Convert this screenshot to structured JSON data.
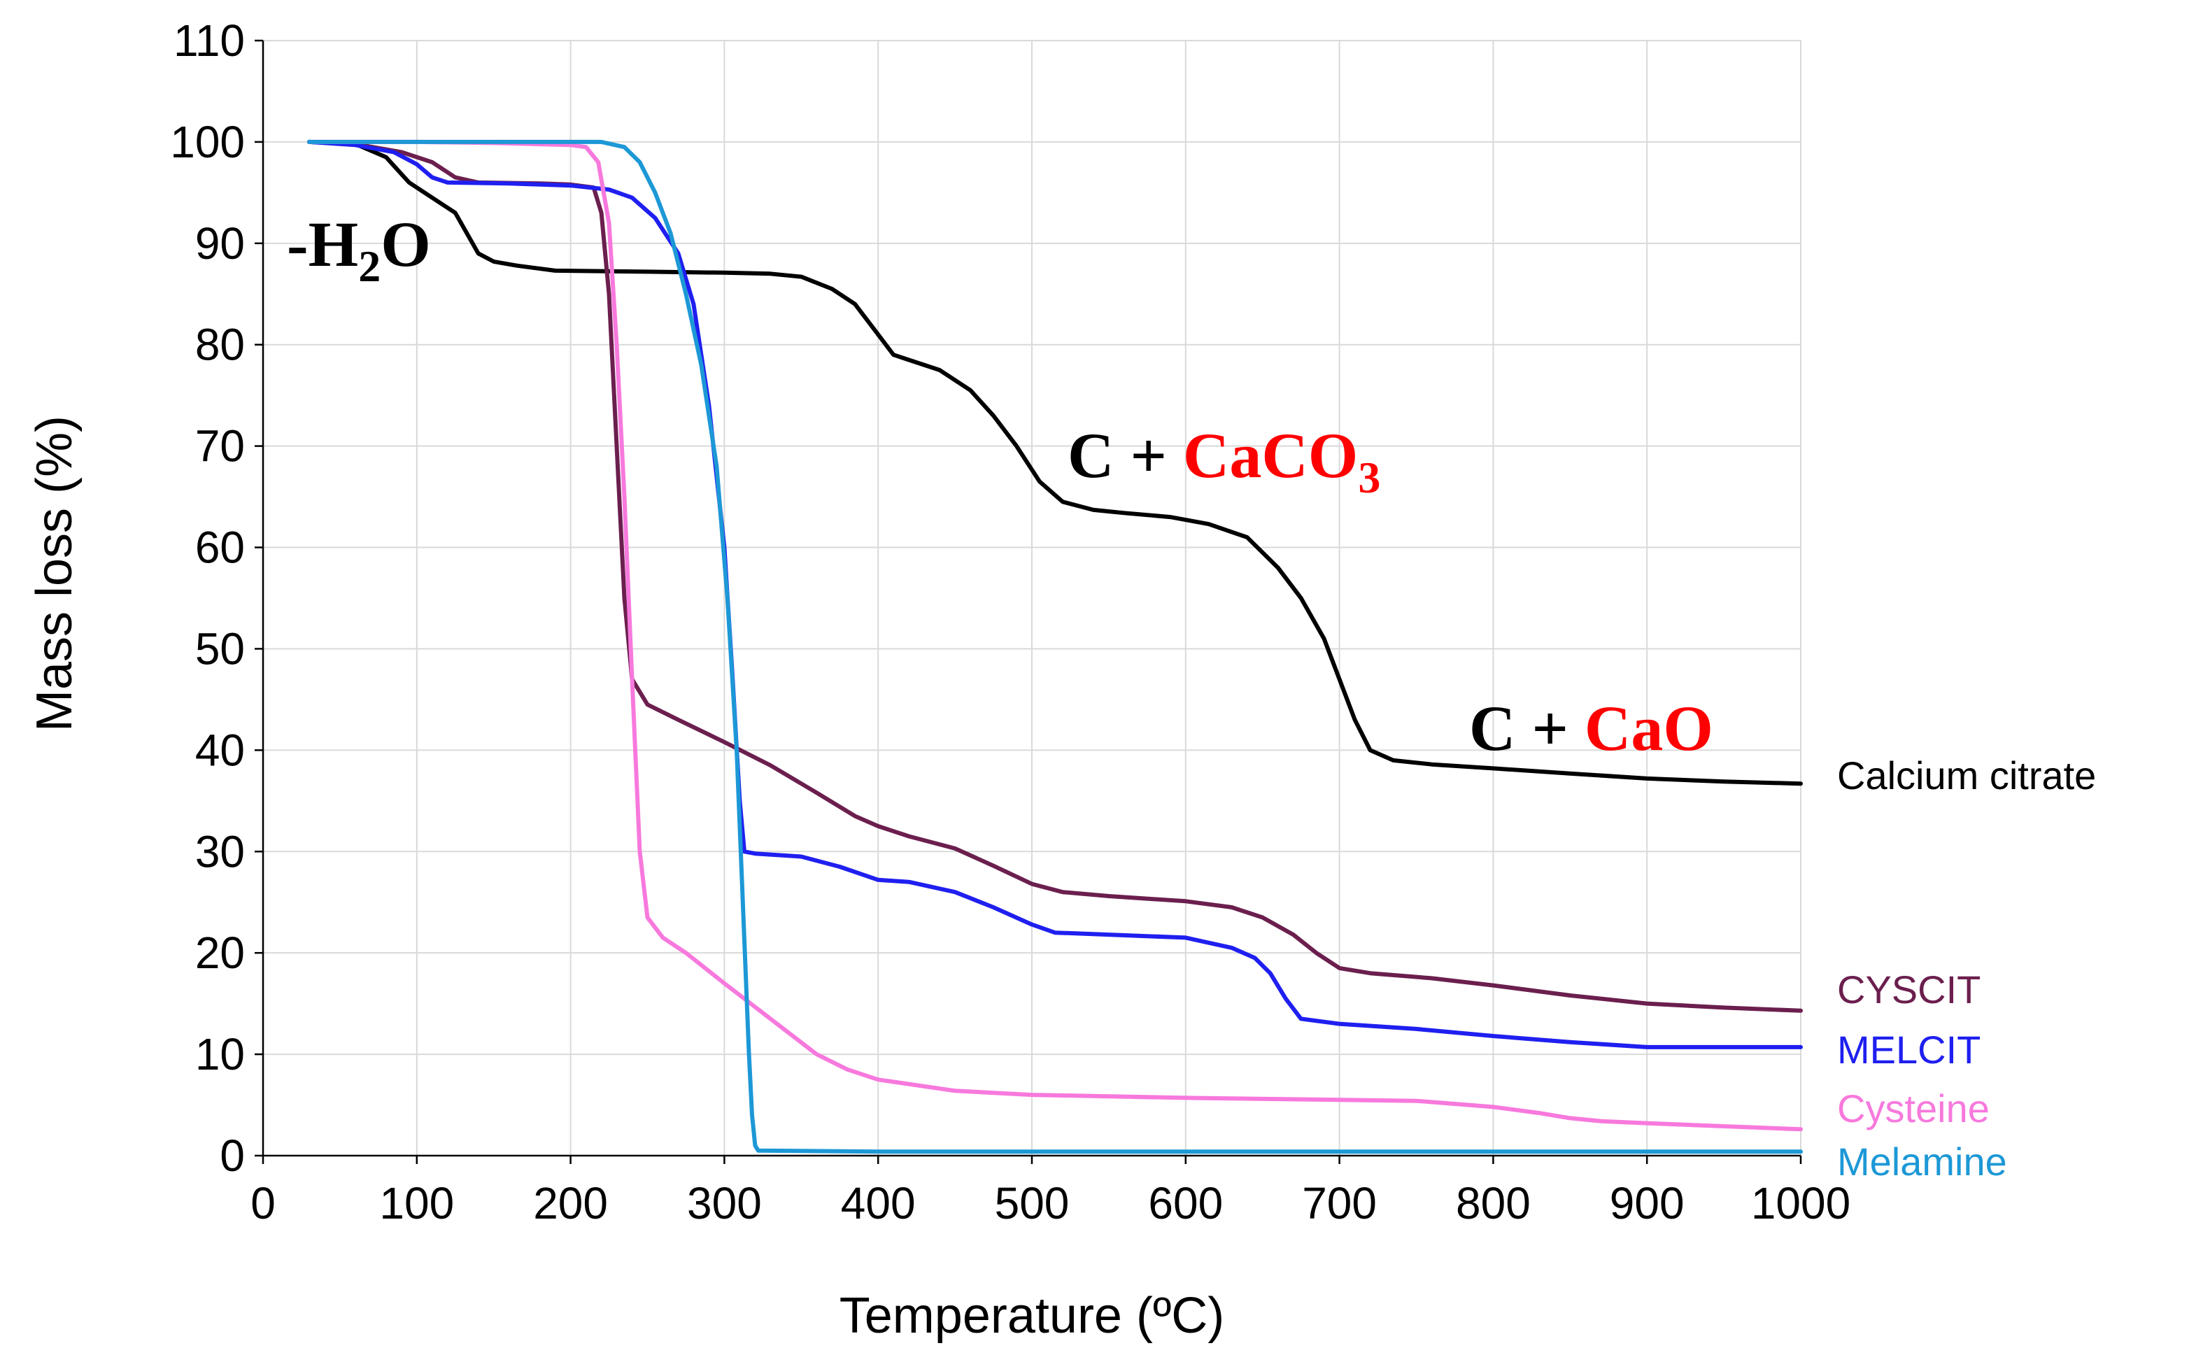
{
  "chart_data": {
    "type": "line",
    "title": "",
    "xlabel": "Temperature (ºC)",
    "ylabel": "Mass loss (%)",
    "xlim": [
      0,
      1000
    ],
    "ylim": [
      0,
      110
    ],
    "x_ticks": [
      "0",
      "100",
      "200",
      "300",
      "400",
      "500",
      "600",
      "700",
      "800",
      "900",
      "1000"
    ],
    "y_ticks": [
      "0",
      "10",
      "20",
      "30",
      "40",
      "50",
      "60",
      "70",
      "80",
      "90",
      "100",
      "110"
    ],
    "grid": true,
    "series": [
      {
        "name": "Calcium citrate",
        "color": "#000000",
        "label_y": 36.7,
        "points": [
          [
            30,
            100
          ],
          [
            60,
            99.8
          ],
          [
            80,
            98.5
          ],
          [
            95,
            96
          ],
          [
            110,
            94.5
          ],
          [
            125,
            93
          ],
          [
            140,
            89
          ],
          [
            150,
            88.2
          ],
          [
            165,
            87.8
          ],
          [
            190,
            87.3
          ],
          [
            250,
            87.2
          ],
          [
            300,
            87.1
          ],
          [
            330,
            87
          ],
          [
            350,
            86.7
          ],
          [
            370,
            85.5
          ],
          [
            385,
            84
          ],
          [
            400,
            81
          ],
          [
            410,
            79
          ],
          [
            420,
            78.5
          ],
          [
            440,
            77.5
          ],
          [
            460,
            75.5
          ],
          [
            475,
            73
          ],
          [
            490,
            70
          ],
          [
            505,
            66.5
          ],
          [
            520,
            64.5
          ],
          [
            540,
            63.7
          ],
          [
            560,
            63.4
          ],
          [
            590,
            63
          ],
          [
            615,
            62.3
          ],
          [
            640,
            61
          ],
          [
            660,
            58
          ],
          [
            675,
            55
          ],
          [
            690,
            51
          ],
          [
            700,
            47
          ],
          [
            710,
            43
          ],
          [
            720,
            40
          ],
          [
            735,
            39
          ],
          [
            760,
            38.6
          ],
          [
            800,
            38.2
          ],
          [
            850,
            37.7
          ],
          [
            900,
            37.2
          ],
          [
            950,
            36.9
          ],
          [
            1000,
            36.7
          ]
        ]
      },
      {
        "name": "CYSCIT",
        "color": "#6b1f4e",
        "label_y": 14.3,
        "points": [
          [
            30,
            100
          ],
          [
            60,
            99.8
          ],
          [
            90,
            99
          ],
          [
            110,
            98
          ],
          [
            125,
            96.5
          ],
          [
            140,
            96
          ],
          [
            180,
            95.9
          ],
          [
            200,
            95.8
          ],
          [
            215,
            95.5
          ],
          [
            220,
            93
          ],
          [
            225,
            85
          ],
          [
            230,
            70
          ],
          [
            235,
            55
          ],
          [
            240,
            47
          ],
          [
            250,
            44.5
          ],
          [
            270,
            43
          ],
          [
            300,
            40.8
          ],
          [
            330,
            38.5
          ],
          [
            360,
            35.8
          ],
          [
            385,
            33.5
          ],
          [
            400,
            32.5
          ],
          [
            420,
            31.5
          ],
          [
            450,
            30.3
          ],
          [
            475,
            28.6
          ],
          [
            500,
            26.8
          ],
          [
            520,
            26
          ],
          [
            550,
            25.6
          ],
          [
            600,
            25.1
          ],
          [
            630,
            24.5
          ],
          [
            650,
            23.5
          ],
          [
            670,
            21.8
          ],
          [
            685,
            20
          ],
          [
            700,
            18.5
          ],
          [
            720,
            18
          ],
          [
            760,
            17.5
          ],
          [
            800,
            16.8
          ],
          [
            850,
            15.8
          ],
          [
            900,
            15
          ],
          [
            950,
            14.6
          ],
          [
            1000,
            14.3
          ]
        ]
      },
      {
        "name": "MELCIT",
        "color": "#1f1ff0",
        "label_y": 10.7,
        "points": [
          [
            30,
            100
          ],
          [
            60,
            99.7
          ],
          [
            85,
            99
          ],
          [
            100,
            97.8
          ],
          [
            110,
            96.5
          ],
          [
            120,
            96
          ],
          [
            160,
            95.9
          ],
          [
            200,
            95.7
          ],
          [
            225,
            95.3
          ],
          [
            240,
            94.5
          ],
          [
            255,
            92.5
          ],
          [
            270,
            89
          ],
          [
            280,
            84
          ],
          [
            290,
            74
          ],
          [
            300,
            60
          ],
          [
            305,
            48
          ],
          [
            310,
            35
          ],
          [
            313,
            30
          ],
          [
            320,
            29.8
          ],
          [
            350,
            29.5
          ],
          [
            375,
            28.5
          ],
          [
            400,
            27.2
          ],
          [
            420,
            27
          ],
          [
            450,
            26
          ],
          [
            475,
            24.5
          ],
          [
            500,
            22.8
          ],
          [
            515,
            22
          ],
          [
            550,
            21.8
          ],
          [
            600,
            21.5
          ],
          [
            630,
            20.5
          ],
          [
            645,
            19.5
          ],
          [
            655,
            18
          ],
          [
            665,
            15.5
          ],
          [
            675,
            13.5
          ],
          [
            700,
            13
          ],
          [
            750,
            12.5
          ],
          [
            800,
            11.8
          ],
          [
            850,
            11.2
          ],
          [
            900,
            10.7
          ],
          [
            950,
            10.7
          ],
          [
            1000,
            10.7
          ]
        ]
      },
      {
        "name": "Cysteine",
        "color": "#f779dd",
        "label_y": 2.6,
        "points": [
          [
            30,
            100
          ],
          [
            100,
            100
          ],
          [
            150,
            99.9
          ],
          [
            200,
            99.7
          ],
          [
            210,
            99.5
          ],
          [
            218,
            98
          ],
          [
            225,
            92
          ],
          [
            230,
            80
          ],
          [
            235,
            65
          ],
          [
            240,
            47
          ],
          [
            245,
            30
          ],
          [
            250,
            23.5
          ],
          [
            260,
            21.5
          ],
          [
            275,
            20
          ],
          [
            300,
            17
          ],
          [
            330,
            13.5
          ],
          [
            360,
            10
          ],
          [
            380,
            8.5
          ],
          [
            400,
            7.5
          ],
          [
            450,
            6.4
          ],
          [
            500,
            6
          ],
          [
            600,
            5.7
          ],
          [
            700,
            5.5
          ],
          [
            750,
            5.4
          ],
          [
            800,
            4.8
          ],
          [
            830,
            4.2
          ],
          [
            850,
            3.7
          ],
          [
            870,
            3.4
          ],
          [
            900,
            3.2
          ],
          [
            950,
            2.9
          ],
          [
            1000,
            2.6
          ]
        ]
      },
      {
        "name": "Melamine",
        "color": "#1d98d6",
        "label_y": 0.4,
        "points": [
          [
            30,
            100
          ],
          [
            100,
            100
          ],
          [
            200,
            100
          ],
          [
            220,
            100
          ],
          [
            235,
            99.5
          ],
          [
            245,
            98
          ],
          [
            255,
            95
          ],
          [
            265,
            91
          ],
          [
            275,
            85
          ],
          [
            285,
            78
          ],
          [
            295,
            68
          ],
          [
            302,
            55
          ],
          [
            308,
            40
          ],
          [
            312,
            25
          ],
          [
            316,
            10
          ],
          [
            318,
            4
          ],
          [
            320,
            1
          ],
          [
            322,
            0.5
          ],
          [
            400,
            0.4
          ],
          [
            600,
            0.4
          ],
          [
            800,
            0.4
          ],
          [
            1000,
            0.4
          ]
        ]
      }
    ],
    "annotations": [
      {
        "id": "h2o",
        "prefix": "-H",
        "sub": "2",
        "suffix": "O",
        "color": "#000000"
      },
      {
        "id": "caco3",
        "text_black": "C + ",
        "text_red": "CaCO",
        "sub": "3",
        "red_color": "#ff0000"
      },
      {
        "id": "cao",
        "text_black": "C + ",
        "text_red": "CaO",
        "red_color": "#ff0000"
      }
    ]
  }
}
